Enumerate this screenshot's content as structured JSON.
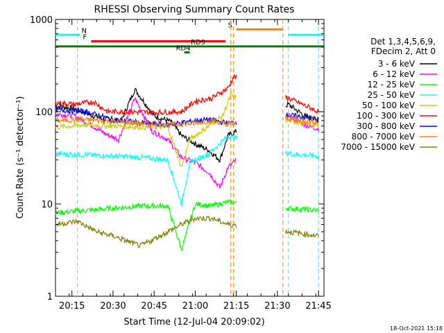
{
  "chart_data": {
    "type": "line",
    "title": "RHESSI Observing Summary Count Rates",
    "xlabel": "Start Time (12-Jul-04 20:09:02)",
    "ylabel": "Count Rate (s⁻¹ detector⁻¹)",
    "yscale": "log",
    "ylim": [
      1,
      1000
    ],
    "xlim": [
      "20:09",
      "21:47"
    ],
    "x_ticks": [
      "20:15",
      "20:30",
      "20:45",
      "21:00",
      "21:15",
      "21:30",
      "21:45"
    ],
    "y_ticks": [
      "1",
      "10",
      "100",
      "1000"
    ],
    "legend_position": "right",
    "legend_header": [
      "Det 1,3,4,5,6,9,",
      "FDecim 2, Att 0"
    ],
    "timestamp": "18-Oct-2021 15:18",
    "series": [
      {
        "name": "3 - 6 keV",
        "color": "#000000",
        "x": [
          "20:09",
          "20:16",
          "20:22",
          "20:27",
          "20:33",
          "20:38",
          "20:45",
          "20:51",
          "20:55",
          "21:00",
          "21:05",
          "21:09",
          "21:12",
          "21:34",
          "21:40",
          "21:45"
        ],
        "y": [
          115,
          108,
          92,
          82,
          80,
          175,
          90,
          78,
          55,
          45,
          38,
          30,
          55,
          120,
          90,
          80
        ]
      },
      {
        "name": "6 - 12 keV",
        "color": "#ff00ff",
        "x": [
          "20:09",
          "20:16",
          "20:22",
          "20:27",
          "20:32",
          "20:38",
          "20:44",
          "20:50",
          "20:55",
          "21:00",
          "21:05",
          "21:09",
          "21:12",
          "21:34",
          "21:40",
          "21:45"
        ],
        "y": [
          95,
          90,
          72,
          58,
          50,
          140,
          62,
          50,
          32,
          28,
          22,
          15,
          25,
          90,
          72,
          65
        ]
      },
      {
        "name": "12 - 25 keV",
        "color": "#00ff00",
        "x": [
          "20:09",
          "20:20",
          "20:30",
          "20:40",
          "20:50",
          "20:55",
          "21:00",
          "21:06",
          "21:12",
          "21:34",
          "21:45"
        ],
        "y": [
          8,
          8.5,
          9,
          9.5,
          9.5,
          3.2,
          10,
          9.5,
          10.5,
          9,
          8.5
        ]
      },
      {
        "name": "25 - 50 keV",
        "color": "#00ffff",
        "x": [
          "20:09",
          "20:20",
          "20:30",
          "20:40",
          "20:50",
          "20:55",
          "20:58",
          "21:05",
          "21:12",
          "21:34",
          "21:45"
        ],
        "y": [
          35,
          34,
          33,
          32,
          30,
          10,
          28,
          35,
          55,
          35,
          33
        ]
      },
      {
        "name": "50 - 100 keV",
        "color": "#cccc00",
        "x": [
          "20:09",
          "20:20",
          "20:30",
          "20:40",
          "20:50",
          "20:55",
          "20:58",
          "21:05",
          "21:10",
          "21:13",
          "21:34",
          "21:45"
        ],
        "y": [
          68,
          72,
          70,
          68,
          68,
          25,
          50,
          70,
          90,
          150,
          80,
          70
        ]
      },
      {
        "name": "100 - 300 keV",
        "color": "#ff0000",
        "x": [
          "20:09",
          "20:16",
          "20:23",
          "20:28",
          "20:35",
          "20:45",
          "20:55",
          "21:00",
          "21:06",
          "21:12",
          "21:14",
          "21:34",
          "21:45"
        ],
        "y": [
          125,
          120,
          128,
          100,
          100,
          98,
          100,
          130,
          140,
          180,
          240,
          140,
          100
        ]
      },
      {
        "name": "300 - 800 keV",
        "color": "#0000ff",
        "x": [
          "20:09",
          "20:20",
          "20:30",
          "20:40",
          "20:50",
          "21:00",
          "21:05",
          "21:12",
          "21:34",
          "21:45"
        ],
        "y": [
          105,
          100,
          82,
          76,
          72,
          80,
          82,
          75,
          92,
          82
        ]
      },
      {
        "name": "800 - 7000 keV",
        "color": "#ff8000",
        "x": [
          "20:09",
          "20:20",
          "20:30",
          "20:40",
          "20:50",
          "21:00",
          "21:06",
          "21:12",
          "21:34",
          "21:45"
        ],
        "y": [
          80,
          82,
          78,
          75,
          72,
          75,
          80,
          73,
          85,
          77
        ]
      },
      {
        "name": "7000 - 15000 keV",
        "color": "#808000",
        "x": [
          "20:09",
          "20:17",
          "20:24",
          "20:30",
          "20:40",
          "20:50",
          "20:55",
          "21:00",
          "21:06",
          "21:12",
          "21:34",
          "21:45"
        ],
        "y": [
          6,
          6.5,
          5,
          4.5,
          3.5,
          5,
          6,
          7,
          7,
          6,
          5,
          4.5
        ]
      }
    ],
    "flags": [
      {
        "label": "N",
        "color": "#00ffff",
        "segments": [
          [
            "20:09",
            "20:18"
          ],
          [
            "21:34",
            "21:47"
          ]
        ],
        "level": 680
      },
      {
        "label": "S",
        "color": "#ff8000",
        "segments": [
          [
            "21:15",
            "21:32"
          ]
        ],
        "level": 780
      },
      {
        "label": "F",
        "color": "#ff0000",
        "segments": [
          [
            "20:22",
            "21:11"
          ]
        ],
        "level": 580
      },
      {
        "label": "RD9",
        "color": "#008000",
        "segments": [
          [
            "20:09",
            "21:47"
          ]
        ],
        "level": 510
      },
      {
        "label": "RD4",
        "color": "#008000",
        "segments": [
          [
            "20:56",
            "20:58"
          ]
        ],
        "level": 440
      }
    ],
    "vlines": [
      {
        "x": "20:17",
        "color": "#00ffff"
      },
      {
        "x": "21:13",
        "color": "#ff8000"
      },
      {
        "x": "21:14",
        "color": "#ff8000"
      },
      {
        "x": "21:32",
        "color": "#ff8000"
      },
      {
        "x": "21:34",
        "color": "#00ffff"
      },
      {
        "x": "21:45",
        "color": "#00ffff"
      }
    ],
    "gaps": [
      [
        "21:15",
        "21:33"
      ]
    ]
  }
}
